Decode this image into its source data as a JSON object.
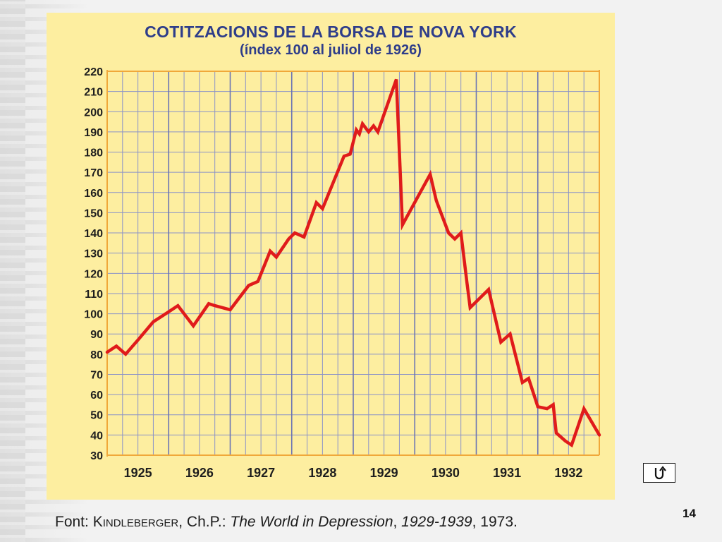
{
  "slide": {
    "page_number": "14",
    "nav_button_icon": "return-arrow-icon",
    "source_prefix": "Font: ",
    "source_author": "Kindleberger",
    "source_mid": ", Ch.P.: ",
    "source_title": "The World in Depression",
    "source_years": "1929-1939",
    "source_end": ", 1973."
  },
  "colors": {
    "background": "#fdeea0",
    "grid": "#8a92c8",
    "grid_year": "#6a74b4",
    "axis": "#f0a83a",
    "line": "#e01b1b",
    "text": "#2e3d8a"
  },
  "chart_data": {
    "type": "line",
    "title": "COTITZACIONS DE LA BORSA DE NOVA YORK",
    "subtitle": "(índex 100 al juliol de 1926)",
    "xlabel": "",
    "ylabel": "",
    "ylim": [
      30,
      220
    ],
    "xlim": [
      1925.0,
      1933.0
    ],
    "yticks": [
      30,
      40,
      50,
      60,
      70,
      80,
      90,
      100,
      110,
      120,
      130,
      140,
      150,
      160,
      170,
      180,
      190,
      200,
      210,
      220
    ],
    "year_labels": [
      "1925",
      "1926",
      "1927",
      "1928",
      "1929",
      "1930",
      "1931",
      "1932"
    ],
    "grid": true,
    "series": [
      {
        "points": [
          [
            1925.0,
            81
          ],
          [
            1925.15,
            84
          ],
          [
            1925.3,
            80
          ],
          [
            1925.5,
            87
          ],
          [
            1925.75,
            96
          ],
          [
            1926.0,
            101
          ],
          [
            1926.15,
            104
          ],
          [
            1926.4,
            94
          ],
          [
            1926.65,
            105
          ],
          [
            1926.75,
            104
          ],
          [
            1927.0,
            102
          ],
          [
            1927.3,
            114
          ],
          [
            1927.45,
            116
          ],
          [
            1927.65,
            131
          ],
          [
            1927.75,
            128
          ],
          [
            1927.95,
            137
          ],
          [
            1928.05,
            140
          ],
          [
            1928.2,
            138
          ],
          [
            1928.4,
            155
          ],
          [
            1928.5,
            152
          ],
          [
            1928.85,
            178
          ],
          [
            1928.95,
            179
          ],
          [
            1929.05,
            191
          ],
          [
            1929.1,
            189
          ],
          [
            1929.15,
            194
          ],
          [
            1929.25,
            190
          ],
          [
            1929.33,
            193
          ],
          [
            1929.4,
            190
          ],
          [
            1929.7,
            216
          ],
          [
            1929.8,
            144
          ],
          [
            1930.25,
            169
          ],
          [
            1930.35,
            156
          ],
          [
            1930.55,
            140
          ],
          [
            1930.65,
            137
          ],
          [
            1930.75,
            140
          ],
          [
            1930.85,
            115
          ],
          [
            1930.9,
            103
          ],
          [
            1931.2,
            112
          ],
          [
            1931.4,
            86
          ],
          [
            1931.55,
            90
          ],
          [
            1931.75,
            66
          ],
          [
            1931.85,
            68
          ],
          [
            1932.0,
            54
          ],
          [
            1932.15,
            53
          ],
          [
            1932.25,
            55
          ],
          [
            1932.3,
            41
          ],
          [
            1932.45,
            37
          ],
          [
            1932.55,
            35
          ],
          [
            1932.75,
            53
          ],
          [
            1933.0,
            40
          ]
        ]
      }
    ]
  }
}
